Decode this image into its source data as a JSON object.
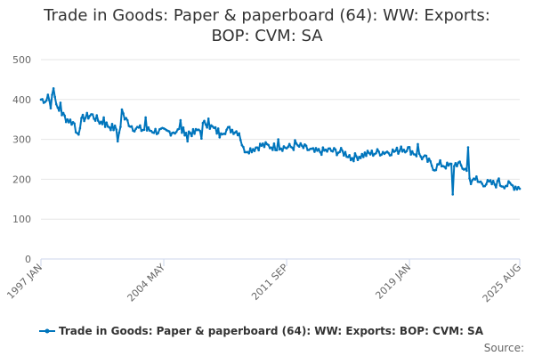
{
  "chart_data": {
    "type": "line",
    "title_lines": [
      "Trade in Goods: Paper & paperboard (64): WW: Exports:",
      "BOP: CVM: SA"
    ],
    "xlabel": "",
    "ylabel": "",
    "ylim": [
      0,
      500
    ],
    "y_ticks": [
      "0",
      "100",
      "200",
      "300",
      "400",
      "500"
    ],
    "x_range": [
      "1997-01",
      "2025-08"
    ],
    "x_ticks": [
      {
        "label": "1997 JAN",
        "month_index": 0
      },
      {
        "label": "2004 MAY",
        "month_index": 88
      },
      {
        "label": "2011 SEP",
        "month_index": 176
      },
      {
        "label": "2019 JAN",
        "month_index": 264
      },
      {
        "label": "2025 AUG",
        "month_index": 343
      }
    ],
    "color": "#0075bc",
    "grid": true,
    "legend_position": "bottom",
    "source_label": "Source:",
    "series": [
      {
        "name": "Trade in Goods: Paper & paperboard (64): WW: Exports: BOP: CVM: SA",
        "anchors": [
          {
            "m": 0,
            "v": 400
          },
          {
            "m": 6,
            "v": 398
          },
          {
            "m": 8,
            "v": 420
          },
          {
            "m": 12,
            "v": 378
          },
          {
            "m": 18,
            "v": 352
          },
          {
            "m": 24,
            "v": 340
          },
          {
            "m": 26,
            "v": 322
          },
          {
            "m": 30,
            "v": 352
          },
          {
            "m": 36,
            "v": 362
          },
          {
            "m": 42,
            "v": 345
          },
          {
            "m": 48,
            "v": 335
          },
          {
            "m": 56,
            "v": 322
          },
          {
            "m": 60,
            "v": 352
          },
          {
            "m": 66,
            "v": 330
          },
          {
            "m": 72,
            "v": 325
          },
          {
            "m": 80,
            "v": 322
          },
          {
            "m": 90,
            "v": 318
          },
          {
            "m": 100,
            "v": 322
          },
          {
            "m": 110,
            "v": 315
          },
          {
            "m": 118,
            "v": 342
          },
          {
            "m": 126,
            "v": 320
          },
          {
            "m": 136,
            "v": 325
          },
          {
            "m": 142,
            "v": 318
          },
          {
            "m": 145,
            "v": 275
          },
          {
            "m": 150,
            "v": 275
          },
          {
            "m": 158,
            "v": 285
          },
          {
            "m": 166,
            "v": 282
          },
          {
            "m": 176,
            "v": 280
          },
          {
            "m": 186,
            "v": 282
          },
          {
            "m": 196,
            "v": 268
          },
          {
            "m": 206,
            "v": 272
          },
          {
            "m": 216,
            "v": 268
          },
          {
            "m": 224,
            "v": 255
          },
          {
            "m": 232,
            "v": 262
          },
          {
            "m": 242,
            "v": 268
          },
          {
            "m": 254,
            "v": 270
          },
          {
            "m": 262,
            "v": 278
          },
          {
            "m": 268,
            "v": 265
          },
          {
            "m": 276,
            "v": 250
          },
          {
            "m": 282,
            "v": 228
          },
          {
            "m": 286,
            "v": 238
          },
          {
            "m": 292,
            "v": 232
          },
          {
            "m": 298,
            "v": 240
          },
          {
            "m": 304,
            "v": 225
          },
          {
            "m": 310,
            "v": 195
          },
          {
            "m": 318,
            "v": 190
          },
          {
            "m": 326,
            "v": 188
          },
          {
            "m": 334,
            "v": 186
          },
          {
            "m": 343,
            "v": 180
          }
        ],
        "spikes": [
          {
            "m": 5,
            "v": 412
          },
          {
            "m": 7,
            "v": 378
          },
          {
            "m": 9,
            "v": 428
          },
          {
            "m": 11,
            "v": 388
          },
          {
            "m": 14,
            "v": 392
          },
          {
            "m": 25,
            "v": 318
          },
          {
            "m": 27,
            "v": 312
          },
          {
            "m": 45,
            "v": 355
          },
          {
            "m": 55,
            "v": 295
          },
          {
            "m": 58,
            "v": 375
          },
          {
            "m": 59,
            "v": 365
          },
          {
            "m": 75,
            "v": 355
          },
          {
            "m": 100,
            "v": 348
          },
          {
            "m": 105,
            "v": 295
          },
          {
            "m": 115,
            "v": 302
          },
          {
            "m": 120,
            "v": 352
          },
          {
            "m": 128,
            "v": 305
          },
          {
            "m": 146,
            "v": 268
          },
          {
            "m": 170,
            "v": 300
          },
          {
            "m": 182,
            "v": 298
          },
          {
            "m": 222,
            "v": 248
          },
          {
            "m": 258,
            "v": 282
          },
          {
            "m": 270,
            "v": 288
          },
          {
            "m": 295,
            "v": 162
          },
          {
            "m": 306,
            "v": 280
          },
          {
            "m": 308,
            "v": 188
          },
          {
            "m": 312,
            "v": 207
          },
          {
            "m": 328,
            "v": 202
          }
        ]
      }
    ]
  }
}
